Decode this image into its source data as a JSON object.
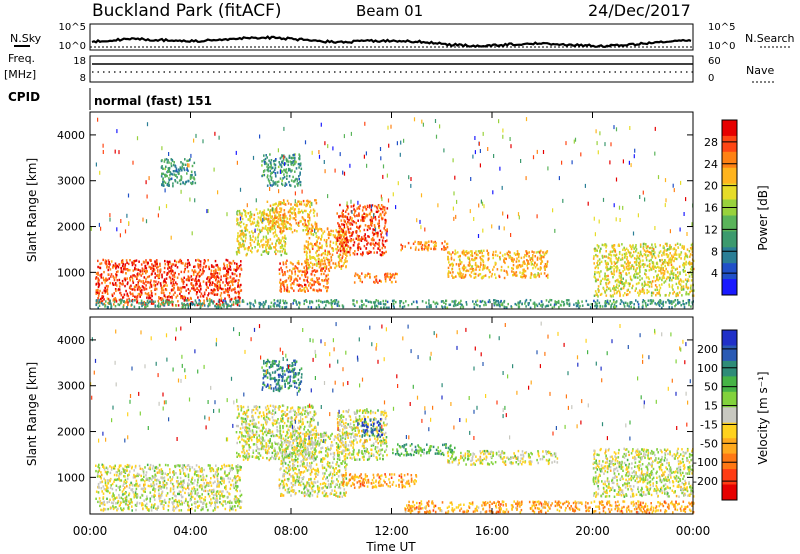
{
  "header": {
    "station": "Buckland Park (fitACF)",
    "beam": "Beam 01",
    "date": "24/Dec/2017"
  },
  "top_panels": {
    "nsky_label": "N.Sky",
    "nsearch_label": "N.Search",
    "noise_ticks": [
      "10^5",
      "10^0"
    ],
    "freq_label": "Freq.",
    "freq_unit": "[MHz]",
    "freq_ticks": [
      "18",
      "8"
    ],
    "nave_label": "Nave",
    "nave_ticks": [
      "60",
      "0"
    ],
    "cpid_label": "CPID",
    "cpid_text": "normal (fast) 151"
  },
  "axes": {
    "ylabel": "Slant Range [km]",
    "xlabel": "Time UT",
    "x_ticks": [
      "00:00",
      "04:00",
      "08:00",
      "12:00",
      "16:00",
      "20:00",
      "00:00"
    ],
    "y_ticks": [
      "1000",
      "2000",
      "3000",
      "4000"
    ]
  },
  "chart_data": [
    {
      "type": "heatmap",
      "name": "power",
      "xlim": [
        0,
        24
      ],
      "ylim": [
        200,
        4500
      ],
      "colorbar": {
        "label": "Power [dB]",
        "ticks": [
          "4",
          "8",
          "12",
          "16",
          "20",
          "24",
          "28"
        ],
        "colors": [
          "#1a1aff",
          "#2050c8",
          "#2a7e96",
          "#3c9a6e",
          "#5ab45a",
          "#98d23c",
          "#e6dc28",
          "#ffb41e",
          "#ff8214",
          "#ff4614",
          "#e60000"
        ]
      },
      "regions": [
        {
          "t": [
            0.2,
            6.0
          ],
          "r": [
            300,
            1300
          ],
          "level": 9
        },
        {
          "t": [
            5.8,
            7.8
          ],
          "r": [
            1400,
            2400
          ],
          "level": 6
        },
        {
          "t": [
            7.0,
            9.0
          ],
          "r": [
            1900,
            2600
          ],
          "level": 7
        },
        {
          "t": [
            7.5,
            9.5
          ],
          "r": [
            600,
            1300
          ],
          "level": 8
        },
        {
          "t": [
            8.5,
            10.2
          ],
          "r": [
            1100,
            2000
          ],
          "level": 7
        },
        {
          "t": [
            9.8,
            11.8
          ],
          "r": [
            1400,
            2500
          ],
          "level": 9
        },
        {
          "t": [
            10.5,
            12.2
          ],
          "r": [
            800,
            1000
          ],
          "level": 8
        },
        {
          "t": [
            12.3,
            14.2
          ],
          "r": [
            1500,
            1700
          ],
          "level": 8
        },
        {
          "t": [
            14.2,
            18.2
          ],
          "r": [
            900,
            1500
          ],
          "level": 7
        },
        {
          "t": [
            20.0,
            24.0
          ],
          "r": [
            500,
            1650
          ],
          "level": 6
        },
        {
          "t": [
            0.2,
            24.0
          ],
          "r": [
            250,
            420
          ],
          "level": 3
        },
        {
          "t": [
            6.8,
            8.4
          ],
          "r": [
            2900,
            3600
          ],
          "level": 3
        },
        {
          "t": [
            2.8,
            4.2
          ],
          "r": [
            2900,
            3500
          ],
          "level": 3
        }
      ]
    },
    {
      "type": "heatmap",
      "name": "velocity",
      "xlim": [
        0,
        24
      ],
      "ylim": [
        200,
        4500
      ],
      "colorbar": {
        "label": "Velocity [m s⁻¹]",
        "ticks": [
          "200",
          "100",
          "50",
          "15",
          "-15",
          "-50",
          "-100",
          "-200"
        ],
        "colors": [
          "#2030c8",
          "#2a5ab4",
          "#2e8c78",
          "#46b446",
          "#82d23c",
          "#c8c8c0",
          "#ffd21e",
          "#ffaa1e",
          "#ff7814",
          "#ff3c14",
          "#e60000"
        ]
      },
      "regions": [
        {
          "t": [
            0.2,
            6.0
          ],
          "r": [
            300,
            1300
          ],
          "level": 5
        },
        {
          "t": [
            5.8,
            9.0
          ],
          "r": [
            1400,
            2600
          ],
          "level": 5
        },
        {
          "t": [
            7.5,
            10.2
          ],
          "r": [
            600,
            2000
          ],
          "level": 5
        },
        {
          "t": [
            9.8,
            11.8
          ],
          "r": [
            1400,
            2500
          ],
          "level": 5
        },
        {
          "t": [
            10.8,
            11.6
          ],
          "r": [
            1900,
            2300
          ],
          "level": 1
        },
        {
          "t": [
            12.0,
            14.5
          ],
          "r": [
            1500,
            1750
          ],
          "level": 3
        },
        {
          "t": [
            14.2,
            18.6
          ],
          "r": [
            1300,
            1600
          ],
          "level": 5
        },
        {
          "t": [
            20.0,
            24.0
          ],
          "r": [
            600,
            1650
          ],
          "level": 5
        },
        {
          "t": [
            12.5,
            24.0
          ],
          "r": [
            250,
            500
          ],
          "level": 7
        },
        {
          "t": [
            10.0,
            13.0
          ],
          "r": [
            800,
            1100
          ],
          "level": 7
        },
        {
          "t": [
            6.8,
            8.4
          ],
          "r": [
            2900,
            3600
          ],
          "level": 2
        }
      ]
    }
  ]
}
